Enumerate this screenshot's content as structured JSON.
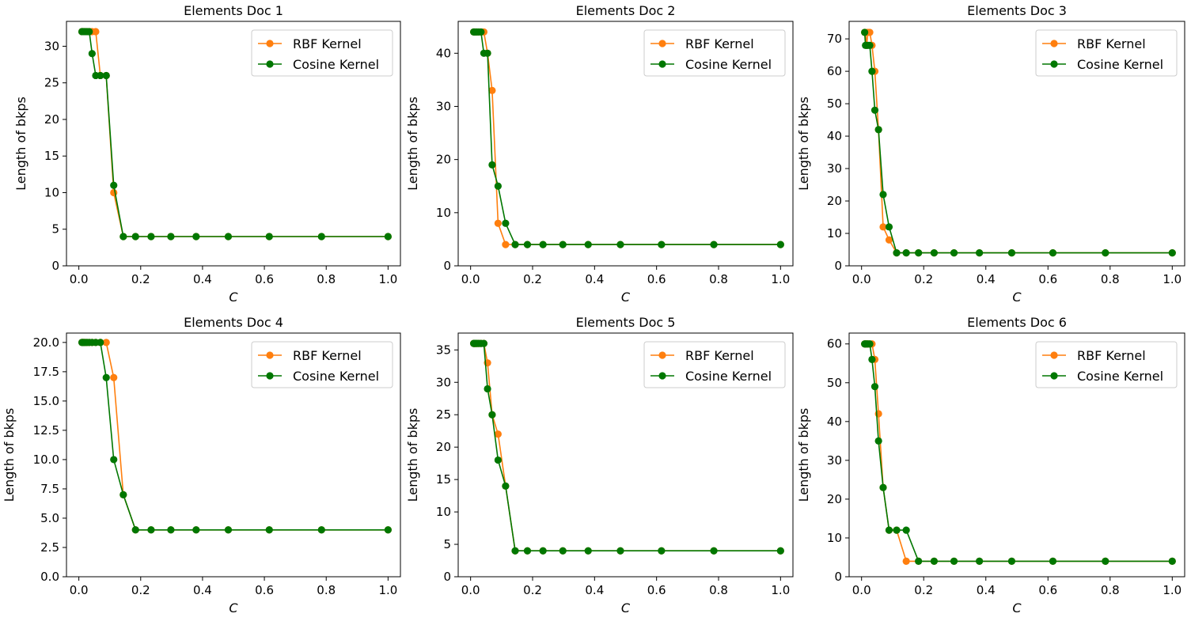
{
  "figure": {
    "background": "#ffffff"
  },
  "colors": {
    "rbf": "#ff7f0e",
    "cosine": "#007700"
  },
  "chart_data": [
    {
      "type": "line",
      "title": "Elements Doc 1",
      "xlabel": "C",
      "ylabel": "Length of bkps",
      "xlim": [
        -0.04,
        1.04
      ],
      "ylim": [
        0,
        33.4
      ],
      "xticks": [
        0.0,
        0.2,
        0.4,
        0.6,
        0.8,
        1.0
      ],
      "xtick_labels": [
        "0.0",
        "0.2",
        "0.4",
        "0.6",
        "0.8",
        "1.0"
      ],
      "yticks": [
        0,
        5,
        10,
        15,
        20,
        25,
        30
      ],
      "ytick_labels": [
        "0",
        "5",
        "10",
        "15",
        "20",
        "25",
        "30"
      ],
      "legend": "top-right",
      "series": [
        {
          "name": "RBF Kernel",
          "color": "#ff7f0e",
          "x": [
            0.01,
            0.0127,
            0.0162,
            0.0207,
            0.0264,
            0.0336,
            0.0428,
            0.0546,
            0.0695,
            0.0886,
            0.1129,
            0.1438,
            0.1833,
            0.2336,
            0.2976,
            0.3793,
            0.4833,
            0.6158,
            0.7848,
            1.0
          ],
          "y": [
            32,
            32,
            32,
            32,
            32,
            32,
            32,
            32,
            26,
            26,
            10,
            4,
            4,
            4,
            4,
            4,
            4,
            4,
            4,
            4
          ]
        },
        {
          "name": "Cosine Kernel",
          "color": "#007700",
          "x": [
            0.01,
            0.0127,
            0.0162,
            0.0207,
            0.0264,
            0.0336,
            0.0428,
            0.0546,
            0.0695,
            0.0886,
            0.1129,
            0.1438,
            0.1833,
            0.2336,
            0.2976,
            0.3793,
            0.4833,
            0.6158,
            0.7848,
            1.0
          ],
          "y": [
            32,
            32,
            32,
            32,
            32,
            32,
            29,
            26,
            26,
            26,
            11,
            4,
            4,
            4,
            4,
            4,
            4,
            4,
            4,
            4
          ]
        }
      ]
    },
    {
      "type": "line",
      "title": "Elements Doc 2",
      "xlabel": "C",
      "ylabel": "Length of bkps",
      "xlim": [
        -0.04,
        1.04
      ],
      "ylim": [
        0,
        46
      ],
      "xticks": [
        0.0,
        0.2,
        0.4,
        0.6,
        0.8,
        1.0
      ],
      "xtick_labels": [
        "0.0",
        "0.2",
        "0.4",
        "0.6",
        "0.8",
        "1.0"
      ],
      "yticks": [
        0,
        10,
        20,
        30,
        40
      ],
      "ytick_labels": [
        "0",
        "10",
        "20",
        "30",
        "40"
      ],
      "legend": "top-right",
      "series": [
        {
          "name": "RBF Kernel",
          "color": "#ff7f0e",
          "x": [
            0.01,
            0.0127,
            0.0162,
            0.0207,
            0.0264,
            0.0336,
            0.0428,
            0.0546,
            0.0695,
            0.0886,
            0.1129,
            0.1438,
            0.1833,
            0.2336,
            0.2976,
            0.3793,
            0.4833,
            0.6158,
            0.7848,
            1.0
          ],
          "y": [
            44,
            44,
            44,
            44,
            44,
            44,
            44,
            40,
            33,
            8,
            4,
            4,
            4,
            4,
            4,
            4,
            4,
            4,
            4,
            4
          ]
        },
        {
          "name": "Cosine Kernel",
          "color": "#007700",
          "x": [
            0.01,
            0.0127,
            0.0162,
            0.0207,
            0.0264,
            0.0336,
            0.0428,
            0.0546,
            0.0695,
            0.0886,
            0.1129,
            0.1438,
            0.1833,
            0.2336,
            0.2976,
            0.3793,
            0.4833,
            0.6158,
            0.7848,
            1.0
          ],
          "y": [
            44,
            44,
            44,
            44,
            44,
            44,
            40,
            40,
            19,
            15,
            8,
            4,
            4,
            4,
            4,
            4,
            4,
            4,
            4,
            4
          ]
        }
      ]
    },
    {
      "type": "line",
      "title": "Elements Doc 3",
      "xlabel": "C",
      "ylabel": "Length of bkps",
      "xlim": [
        -0.04,
        1.04
      ],
      "ylim": [
        0,
        75.4
      ],
      "xticks": [
        0.0,
        0.2,
        0.4,
        0.6,
        0.8,
        1.0
      ],
      "xtick_labels": [
        "0.0",
        "0.2",
        "0.4",
        "0.6",
        "0.8",
        "1.0"
      ],
      "yticks": [
        0,
        10,
        20,
        30,
        40,
        50,
        60,
        70
      ],
      "ytick_labels": [
        "0",
        "10",
        "20",
        "30",
        "40",
        "50",
        "60",
        "70"
      ],
      "legend": "top-right",
      "series": [
        {
          "name": "RBF Kernel",
          "color": "#ff7f0e",
          "x": [
            0.01,
            0.0127,
            0.0162,
            0.0207,
            0.0264,
            0.0336,
            0.0428,
            0.0546,
            0.0695,
            0.0886,
            0.1129,
            0.1438,
            0.1833,
            0.2336,
            0.2976,
            0.3793,
            0.4833,
            0.6158,
            0.7848,
            1.0
          ],
          "y": [
            72,
            72,
            68,
            72,
            72,
            68,
            60,
            42,
            12,
            8,
            4,
            4,
            4,
            4,
            4,
            4,
            4,
            4,
            4,
            4
          ]
        },
        {
          "name": "Cosine Kernel",
          "color": "#007700",
          "x": [
            0.01,
            0.0127,
            0.0162,
            0.0207,
            0.0264,
            0.0336,
            0.0428,
            0.0546,
            0.0695,
            0.0886,
            0.1129,
            0.1438,
            0.1833,
            0.2336,
            0.2976,
            0.3793,
            0.4833,
            0.6158,
            0.7848,
            1.0
          ],
          "y": [
            72,
            68,
            68,
            68,
            68,
            60,
            48,
            42,
            22,
            12,
            4,
            4,
            4,
            4,
            4,
            4,
            4,
            4,
            4,
            4
          ]
        }
      ]
    },
    {
      "type": "line",
      "title": "Elements Doc 4",
      "xlabel": "C",
      "ylabel": "Length of bkps",
      "xlim": [
        -0.04,
        1.04
      ],
      "ylim": [
        0,
        20.8
      ],
      "xticks": [
        0.0,
        0.2,
        0.4,
        0.6,
        0.8,
        1.0
      ],
      "xtick_labels": [
        "0.0",
        "0.2",
        "0.4",
        "0.6",
        "0.8",
        "1.0"
      ],
      "yticks": [
        0,
        2.5,
        5,
        7.5,
        10,
        12.5,
        15,
        17.5,
        20
      ],
      "ytick_labels": [
        "0.0",
        "2.5",
        "5.0",
        "7.5",
        "10.0",
        "12.5",
        "15.0",
        "17.5",
        "20.0"
      ],
      "legend": "top-right",
      "series": [
        {
          "name": "RBF Kernel",
          "color": "#ff7f0e",
          "x": [
            0.01,
            0.0127,
            0.0162,
            0.0207,
            0.0264,
            0.0336,
            0.0428,
            0.0546,
            0.0695,
            0.0886,
            0.1129,
            0.1438,
            0.1833,
            0.2336,
            0.2976,
            0.3793,
            0.4833,
            0.6158,
            0.7848,
            1.0
          ],
          "y": [
            20,
            20,
            20,
            20,
            20,
            20,
            20,
            20,
            20,
            20,
            17,
            7,
            4,
            4,
            4,
            4,
            4,
            4,
            4,
            4
          ]
        },
        {
          "name": "Cosine Kernel",
          "color": "#007700",
          "x": [
            0.01,
            0.0127,
            0.0162,
            0.0207,
            0.0264,
            0.0336,
            0.0428,
            0.0546,
            0.0695,
            0.0886,
            0.1129,
            0.1438,
            0.1833,
            0.2336,
            0.2976,
            0.3793,
            0.4833,
            0.6158,
            0.7848,
            1.0
          ],
          "y": [
            20,
            20,
            20,
            20,
            20,
            20,
            20,
            20,
            20,
            17,
            10,
            7,
            4,
            4,
            4,
            4,
            4,
            4,
            4,
            4
          ]
        }
      ]
    },
    {
      "type": "line",
      "title": "Elements Doc 5",
      "xlabel": "C",
      "ylabel": "Length of bkps",
      "xlim": [
        -0.04,
        1.04
      ],
      "ylim": [
        0,
        37.6
      ],
      "xticks": [
        0.0,
        0.2,
        0.4,
        0.6,
        0.8,
        1.0
      ],
      "xtick_labels": [
        "0.0",
        "0.2",
        "0.4",
        "0.6",
        "0.8",
        "1.0"
      ],
      "yticks": [
        0,
        5,
        10,
        15,
        20,
        25,
        30,
        35
      ],
      "ytick_labels": [
        "0",
        "5",
        "10",
        "15",
        "20",
        "25",
        "30",
        "35"
      ],
      "legend": "top-right",
      "series": [
        {
          "name": "RBF Kernel",
          "color": "#ff7f0e",
          "x": [
            0.01,
            0.0127,
            0.0162,
            0.0207,
            0.0264,
            0.0336,
            0.0428,
            0.0546,
            0.0695,
            0.0886,
            0.1129,
            0.1438,
            0.1833,
            0.2336,
            0.2976,
            0.3793,
            0.4833,
            0.6158,
            0.7848,
            1.0
          ],
          "y": [
            36,
            36,
            36,
            36,
            36,
            36,
            36,
            33,
            25,
            22,
            14,
            4,
            4,
            4,
            4,
            4,
            4,
            4,
            4,
            4
          ]
        },
        {
          "name": "Cosine Kernel",
          "color": "#007700",
          "x": [
            0.01,
            0.0127,
            0.0162,
            0.0207,
            0.0264,
            0.0336,
            0.0428,
            0.0546,
            0.0695,
            0.0886,
            0.1129,
            0.1438,
            0.1833,
            0.2336,
            0.2976,
            0.3793,
            0.4833,
            0.6158,
            0.7848,
            1.0
          ],
          "y": [
            36,
            36,
            36,
            36,
            36,
            36,
            36,
            29,
            25,
            18,
            14,
            4,
            4,
            4,
            4,
            4,
            4,
            4,
            4,
            4
          ]
        }
      ]
    },
    {
      "type": "line",
      "title": "Elements Doc 6",
      "xlabel": "C",
      "ylabel": "Length of bkps",
      "xlim": [
        -0.04,
        1.04
      ],
      "ylim": [
        0,
        62.8
      ],
      "xticks": [
        0.0,
        0.2,
        0.4,
        0.6,
        0.8,
        1.0
      ],
      "xtick_labels": [
        "0.0",
        "0.2",
        "0.4",
        "0.6",
        "0.8",
        "1.0"
      ],
      "yticks": [
        0,
        10,
        20,
        30,
        40,
        50,
        60
      ],
      "ytick_labels": [
        "0",
        "10",
        "20",
        "30",
        "40",
        "50",
        "60"
      ],
      "legend": "top-right",
      "series": [
        {
          "name": "RBF Kernel",
          "color": "#ff7f0e",
          "x": [
            0.01,
            0.0127,
            0.0162,
            0.0207,
            0.0264,
            0.0336,
            0.0428,
            0.0546,
            0.0695,
            0.0886,
            0.1129,
            0.1438,
            0.1833,
            0.2336,
            0.2976,
            0.3793,
            0.4833,
            0.6158,
            0.7848,
            1.0
          ],
          "y": [
            60,
            60,
            60,
            60,
            60,
            60,
            56,
            42,
            23,
            12,
            12,
            4,
            4,
            4,
            4,
            4,
            4,
            4,
            4,
            4
          ]
        },
        {
          "name": "Cosine Kernel",
          "color": "#007700",
          "x": [
            0.01,
            0.0127,
            0.0162,
            0.0207,
            0.0264,
            0.0336,
            0.0428,
            0.0546,
            0.0695,
            0.0886,
            0.1129,
            0.1438,
            0.1833,
            0.2336,
            0.2976,
            0.3793,
            0.4833,
            0.6158,
            0.7848,
            1.0
          ],
          "y": [
            60,
            60,
            60,
            60,
            60,
            56,
            49,
            35,
            23,
            12,
            12,
            12,
            4,
            4,
            4,
            4,
            4,
            4,
            4,
            4
          ]
        }
      ]
    }
  ]
}
